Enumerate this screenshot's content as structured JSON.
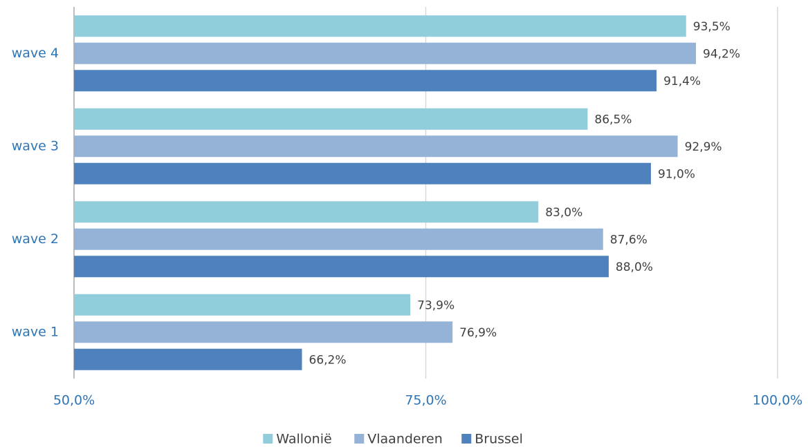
{
  "chart_data": {
    "type": "bar",
    "orientation": "horizontal",
    "categories": [
      "wave 1",
      "wave 2",
      "wave 3",
      "wave 4"
    ],
    "series": [
      {
        "name": "Wallonië",
        "color": "#92cddc",
        "values": [
          73.9,
          83.0,
          86.5,
          93.5
        ],
        "value_labels": [
          "73,9%",
          "83,0%",
          "86,5%",
          "93,5%"
        ]
      },
      {
        "name": "Vlaanderen",
        "color": "#95b3d7",
        "values": [
          76.9,
          87.6,
          92.9,
          94.2
        ],
        "value_labels": [
          "76,9%",
          "87,6%",
          "92,9%",
          "94,2%"
        ]
      },
      {
        "name": "Brussel",
        "color": "#4f81bd",
        "values": [
          66.2,
          88.0,
          91.0,
          91.4
        ],
        "value_labels": [
          "66,2%",
          "88,0%",
          "91,0%",
          "91,4%"
        ]
      }
    ],
    "xlim": [
      50,
      100
    ],
    "xticks": [
      {
        "value": 50,
        "label": "50,0%"
      },
      {
        "value": 75,
        "label": "75,0%"
      },
      {
        "value": 100,
        "label": "100,0%"
      }
    ],
    "grid": true,
    "legend": "bottom"
  }
}
